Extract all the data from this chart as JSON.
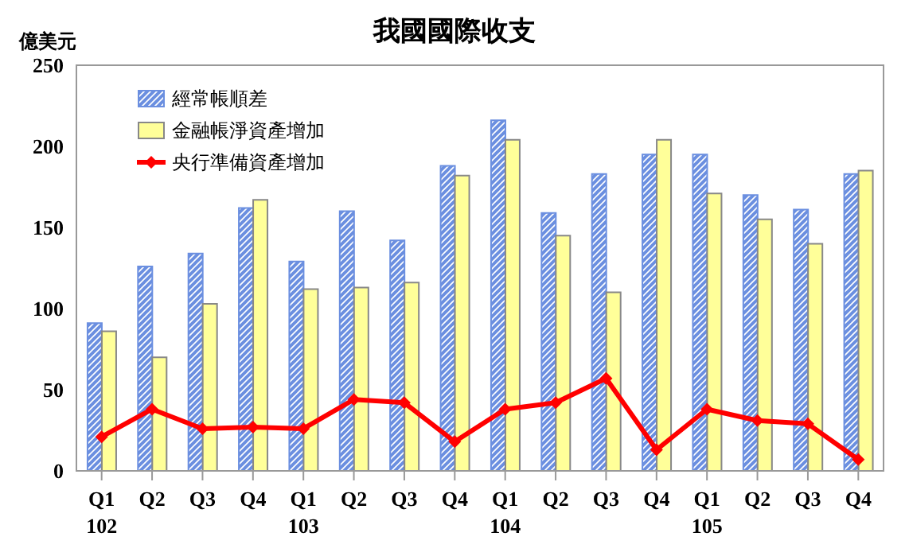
{
  "chart_data": {
    "type": "bar",
    "title": "我國國際收支",
    "ylabel": "億美元",
    "categories": [
      "Q1\n102",
      "Q2",
      "Q3",
      "Q4",
      "Q1\n103",
      "Q2",
      "Q3",
      "Q4",
      "Q1\n104",
      "Q2",
      "Q3",
      "Q4",
      "Q1\n105",
      "Q2",
      "Q3",
      "Q4"
    ],
    "series": [
      {
        "name": "經常帳順差",
        "color": "#6b8fe0",
        "values": [
          91,
          126,
          134,
          162,
          129,
          160,
          142,
          188,
          216,
          159,
          183,
          195,
          195,
          170,
          161,
          183
        ]
      },
      {
        "name": "金融帳淨資產增加",
        "color": "#ffff99",
        "values": [
          86,
          70,
          103,
          167,
          112,
          113,
          116,
          182,
          204,
          145,
          110,
          204,
          171,
          155,
          140,
          185
        ]
      },
      {
        "name": "央行準備資產增加",
        "type": "line",
        "color": "#ff0000",
        "values": [
          21,
          38,
          26,
          27,
          26,
          44,
          42,
          18,
          38,
          42,
          57,
          13,
          38,
          31,
          29,
          7
        ]
      }
    ],
    "ylim": [
      0,
      250
    ],
    "yticks": [
      0,
      50,
      100,
      150,
      200,
      250
    ],
    "grid": false,
    "legend": "top left",
    "marker": "diamond",
    "line_style": "solid"
  }
}
